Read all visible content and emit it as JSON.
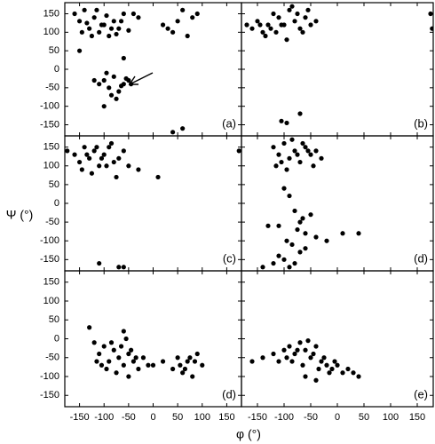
{
  "figure": {
    "xlabel": "φ (°)",
    "ylabel": "Ψ (°)"
  },
  "chart_data": [
    {
      "type": "scatter",
      "label": "(a)",
      "color": "#000000",
      "xlim": [
        -180,
        180
      ],
      "ylim": [
        -180,
        180
      ],
      "xticks": [
        -150,
        -100,
        -50,
        0,
        50,
        100,
        150
      ],
      "yticks": [
        -150,
        -100,
        -50,
        0,
        50,
        100,
        150
      ],
      "x": [
        -160,
        -150,
        -140,
        -130,
        -120,
        -110,
        -100,
        -90,
        -80,
        -70,
        -60,
        -145,
        -125,
        -105,
        -95,
        -85,
        -75,
        -115,
        -135,
        -65,
        -50,
        -40,
        -30,
        20,
        40,
        60,
        80,
        70,
        50,
        30,
        90,
        -100,
        -90,
        -80,
        -70,
        -60,
        -50,
        -110,
        -95,
        -75,
        -65,
        -85,
        -55,
        -120,
        -45,
        -150,
        -60,
        -100,
        60,
        40
      ],
      "y": [
        150,
        130,
        160,
        110,
        140,
        100,
        120,
        90,
        130,
        110,
        150,
        100,
        90,
        120,
        145,
        110,
        95,
        160,
        125,
        130,
        105,
        150,
        140,
        120,
        100,
        160,
        140,
        90,
        130,
        110,
        150,
        -30,
        -50,
        -20,
        -60,
        -40,
        -30,
        -40,
        -10,
        -80,
        -45,
        -70,
        -25,
        -30,
        -40,
        50,
        30,
        -100,
        -160,
        -170
      ]
    },
    {
      "type": "scatter",
      "label": "(b)",
      "color": "#000000",
      "xlim": [
        -180,
        180
      ],
      "ylim": [
        -180,
        180
      ],
      "xticks": [
        -150,
        -100,
        -50,
        0,
        50,
        100,
        150
      ],
      "yticks": [
        -150,
        -100,
        -50,
        0,
        50,
        100,
        150
      ],
      "x": [
        -170,
        -160,
        -150,
        -140,
        -130,
        -120,
        -110,
        -100,
        -90,
        -80,
        -70,
        -60,
        -50,
        -40,
        -135,
        -115,
        -95,
        -85,
        -75,
        -65,
        -105,
        -125,
        -55,
        -145,
        175,
        178,
        -105,
        -95,
        -70
      ],
      "y": [
        120,
        110,
        130,
        100,
        120,
        150,
        140,
        120,
        160,
        130,
        110,
        140,
        120,
        130,
        90,
        100,
        80,
        170,
        150,
        100,
        120,
        110,
        160,
        120,
        150,
        110,
        -140,
        -145,
        -120
      ]
    },
    {
      "type": "scatter",
      "label": "(c)",
      "color": "#000000",
      "xlim": [
        -180,
        180
      ],
      "ylim": [
        -180,
        180
      ],
      "xticks": [
        -150,
        -100,
        -50,
        0,
        50,
        100,
        150
      ],
      "yticks": [
        -150,
        -100,
        -50,
        0,
        50,
        100,
        150
      ],
      "x": [
        -175,
        -160,
        -150,
        -140,
        -130,
        -120,
        -110,
        -100,
        -90,
        -80,
        -70,
        -60,
        -145,
        -125,
        -105,
        -95,
        -85,
        -75,
        -115,
        -135,
        -50,
        -30,
        10,
        175,
        -110,
        -60,
        -70
      ],
      "y": [
        140,
        130,
        110,
        150,
        120,
        140,
        100,
        130,
        150,
        110,
        120,
        140,
        90,
        80,
        120,
        100,
        160,
        70,
        150,
        130,
        100,
        90,
        70,
        140,
        -160,
        -170,
        -170
      ]
    },
    {
      "type": "scatter",
      "label": "(d)",
      "color": "#000000",
      "xlim": [
        -180,
        180
      ],
      "ylim": [
        -180,
        180
      ],
      "xticks": [
        -150,
        -100,
        -50,
        0,
        50,
        100,
        150
      ],
      "yticks": [
        -150,
        -100,
        -50,
        0,
        50,
        100,
        150
      ],
      "x": [
        -120,
        -110,
        -100,
        -90,
        -80,
        -70,
        -60,
        -50,
        -40,
        -30,
        -115,
        -95,
        -85,
        -75,
        -65,
        -55,
        -105,
        -45,
        -100,
        -90,
        -80,
        -70,
        -60,
        -50,
        -110,
        -95,
        -85,
        -75,
        -65,
        -120,
        -130,
        -40,
        -20,
        10,
        40,
        -100,
        -90,
        -70,
        -80,
        -60,
        -140,
        -110
      ],
      "y": [
        150,
        130,
        160,
        120,
        140,
        110,
        150,
        130,
        140,
        120,
        100,
        90,
        170,
        130,
        160,
        140,
        110,
        100,
        40,
        20,
        -20,
        -50,
        -80,
        -30,
        -60,
        -100,
        -110,
        -70,
        -40,
        -160,
        -60,
        -90,
        -100,
        -80,
        -80,
        -150,
        -170,
        -130,
        -160,
        -120,
        -170,
        -140
      ]
    },
    {
      "type": "scatter",
      "label": "(d)",
      "color": "#000000",
      "xlim": [
        -180,
        180
      ],
      "ylim": [
        -180,
        180
      ],
      "xticks": [
        -150,
        -100,
        -50,
        0,
        50,
        100,
        150
      ],
      "yticks": [
        -150,
        -100,
        -50,
        0,
        50,
        100,
        150
      ],
      "x": [
        -130,
        -120,
        -110,
        -100,
        -90,
        -80,
        -70,
        -60,
        -50,
        -40,
        -30,
        -20,
        -10,
        -115,
        -95,
        -85,
        -75,
        -65,
        -55,
        -45,
        -35,
        -105,
        -60,
        -50,
        0,
        20,
        40,
        50,
        60,
        70,
        80,
        90,
        100,
        65,
        75,
        55,
        85
      ],
      "y": [
        30,
        -10,
        -40,
        -20,
        -60,
        -30,
        -50,
        -70,
        -40,
        -60,
        -80,
        -50,
        -70,
        -60,
        -80,
        -10,
        -90,
        -20,
        0,
        -30,
        -50,
        -70,
        20,
        -100,
        -70,
        -60,
        -80,
        -50,
        -90,
        -60,
        -100,
        -40,
        -70,
        -80,
        -50,
        -70,
        -60
      ]
    },
    {
      "type": "scatter",
      "label": "(e)",
      "color": "#000000",
      "xlim": [
        -180,
        180
      ],
      "ylim": [
        -180,
        180
      ],
      "xticks": [
        -150,
        -100,
        -50,
        0,
        50,
        100,
        150
      ],
      "yticks": [
        -150,
        -100,
        -50,
        0,
        50,
        100,
        150
      ],
      "x": [
        -160,
        -140,
        -120,
        -100,
        -90,
        -80,
        -70,
        -60,
        -50,
        -40,
        -30,
        -20,
        -10,
        0,
        10,
        20,
        30,
        40,
        -110,
        -95,
        -85,
        -75,
        -65,
        -55,
        -45,
        -35,
        -25,
        -15,
        -5,
        -60,
        -40
      ],
      "y": [
        -60,
        -50,
        -40,
        -30,
        -20,
        -40,
        -10,
        -30,
        -50,
        -20,
        -60,
        -70,
        -80,
        -70,
        -90,
        -80,
        -90,
        -100,
        -60,
        -50,
        -60,
        -30,
        -70,
        -5,
        -40,
        -80,
        -50,
        -90,
        -60,
        -100,
        -110
      ]
    }
  ]
}
